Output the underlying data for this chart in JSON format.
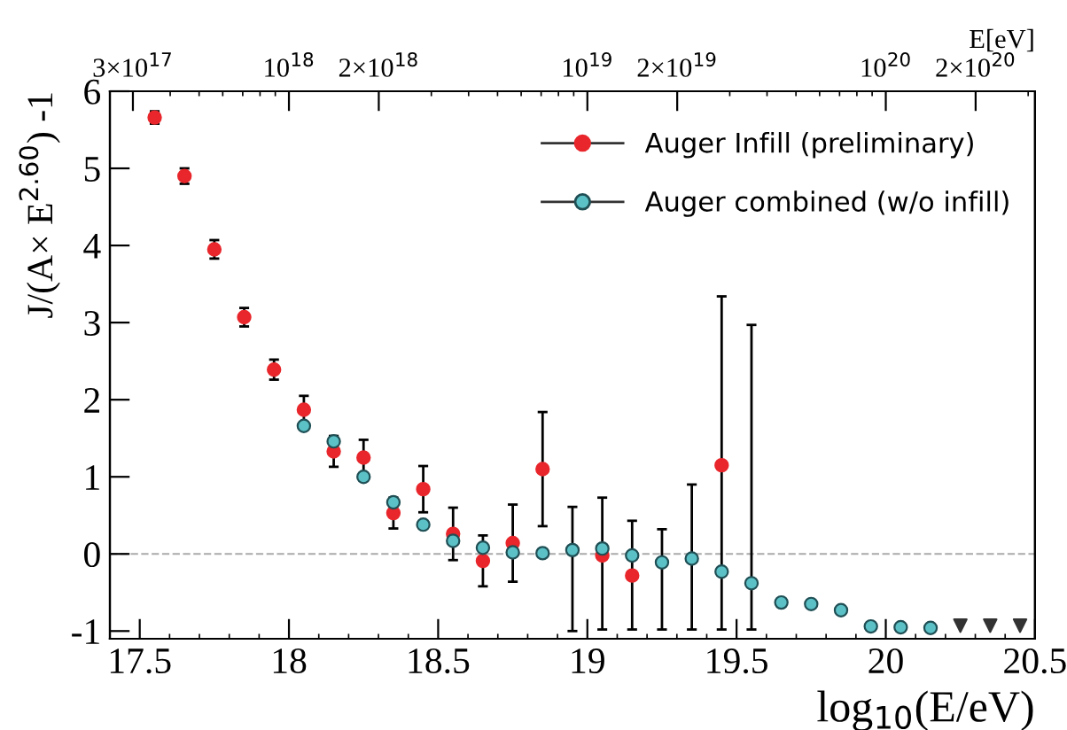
{
  "chart_data": {
    "type": "scatter",
    "xlabel": "log$_{10}$(E/eV)",
    "ylabel": "J/(A× E$^{2.60}$) -1",
    "x2label": "E[eV]",
    "xlim": [
      17.4,
      20.5
    ],
    "xticks": [
      17.5,
      18,
      18.5,
      19,
      19.5,
      20,
      20.5
    ],
    "log": "x2",
    "x2lim": [
      2.512e+17,
      3.162e+20
    ],
    "x2ticks": [
      {
        "value": 3e+17,
        "label": "3×10$^{17}$"
      },
      {
        "value": 1e+18,
        "label": "10$^{18}$"
      },
      {
        "value": 2e+18,
        "label": "2×10$^{18}$"
      },
      {
        "value": 1e+19,
        "label": "10$^{19}$"
      },
      {
        "value": 2e+19,
        "label": "2×10$^{19}$"
      },
      {
        "value": 1e+20,
        "label": "10$^{20}$"
      },
      {
        "value": 2e+20,
        "label": "2×10$^{20}$"
      },
      {
        "value": 4e+17,
        "label": null
      },
      {
        "value": 5e+17,
        "label": null
      },
      {
        "value": 6e+17,
        "label": null
      },
      {
        "value": 7e+17,
        "label": null
      },
      {
        "value": 8e+17,
        "label": null
      },
      {
        "value": 9e+17,
        "label": null
      },
      {
        "value": 3e+18,
        "label": null
      },
      {
        "value": 4e+18,
        "label": null
      },
      {
        "value": 5e+18,
        "label": null
      },
      {
        "value": 6e+18,
        "label": null
      },
      {
        "value": 7e+18,
        "label": null
      },
      {
        "value": 8e+18,
        "label": null
      },
      {
        "value": 9e+18,
        "label": null
      },
      {
        "value": 3e+19,
        "label": null
      },
      {
        "value": 4e+19,
        "label": null
      },
      {
        "value": 5e+19,
        "label": null
      },
      {
        "value": 6e+19,
        "label": null
      },
      {
        "value": 7e+19,
        "label": null
      },
      {
        "value": 8e+19,
        "label": null
      },
      {
        "value": 9e+19,
        "label": null
      },
      {
        "value": 3e+20,
        "label": null
      }
    ],
    "ylim": [
      -1.1,
      6
    ],
    "yticks": [
      -1,
      0,
      1,
      2,
      3,
      4,
      5,
      6
    ],
    "ref_lines": [
      {
        "axis": "y",
        "value": 0,
        "color": "#aaaaaa",
        "line_style": "dashed"
      }
    ],
    "legend": "top right",
    "grid": false,
    "series": [
      {
        "name": "Auger Infill (preliminary)",
        "color": "#e8262b",
        "marker": "circle",
        "x": [
          17.55,
          17.65,
          17.75,
          17.85,
          17.95,
          18.05,
          18.15,
          18.25,
          18.35,
          18.45,
          18.55,
          18.65,
          18.75,
          18.85,
          19.05,
          19.15,
          19.45
        ],
        "values": [
          5.66,
          4.9,
          3.95,
          3.07,
          2.39,
          1.87,
          1.33,
          1.25,
          0.53,
          0.84,
          0.26,
          -0.09,
          0.14,
          1.1,
          -0.02,
          -0.28,
          1.15
        ],
        "errors": [
          [
            5.58,
            5.74
          ],
          [
            4.8,
            5.0
          ],
          [
            3.83,
            4.07
          ],
          [
            2.95,
            3.19
          ],
          [
            2.26,
            2.52
          ],
          [
            1.69,
            2.05
          ],
          [
            1.13,
            1.53
          ],
          [
            1.02,
            1.48
          ],
          [
            0.33,
            0.73
          ],
          [
            0.54,
            1.14
          ],
          [
            -0.08,
            0.6
          ],
          [
            -0.42,
            0.24
          ],
          [
            -0.36,
            0.64
          ],
          [
            0.36,
            1.84
          ],
          null,
          null,
          [
            -0.98,
            3.34
          ]
        ]
      },
      {
        "name": "Auger combined (w/o infill)",
        "color": "#5bc1c6",
        "marker": "circle",
        "x": [
          18.05,
          18.15,
          18.25,
          18.35,
          18.45,
          18.55,
          18.65,
          18.75,
          18.85,
          18.95,
          19.05,
          19.15,
          19.25,
          19.35,
          19.45,
          19.55,
          19.65,
          19.75,
          19.85,
          19.95,
          20.05,
          20.15
        ],
        "values": [
          1.66,
          1.46,
          1.0,
          0.67,
          0.38,
          0.17,
          0.08,
          0.02,
          0.01,
          0.05,
          0.07,
          -0.02,
          -0.11,
          -0.06,
          -0.23,
          -0.38,
          -0.63,
          -0.65,
          -0.73,
          -0.94,
          -0.95,
          -0.96
        ],
        "errors": [
          null,
          null,
          null,
          null,
          null,
          null,
          null,
          null,
          null,
          [
            -1.0,
            0.61
          ],
          [
            -0.98,
            0.73
          ],
          [
            -0.98,
            0.43
          ],
          [
            -0.98,
            0.32
          ],
          [
            -0.98,
            0.9
          ],
          null,
          [
            -0.98,
            2.97
          ],
          null,
          null,
          null,
          null,
          null,
          null
        ]
      },
      {
        "color": "#333333",
        "marker": "triangle",
        "x": [
          20.25,
          20.35,
          20.45
        ],
        "values": [
          -0.93,
          -0.93,
          -0.93
        ]
      }
    ]
  }
}
